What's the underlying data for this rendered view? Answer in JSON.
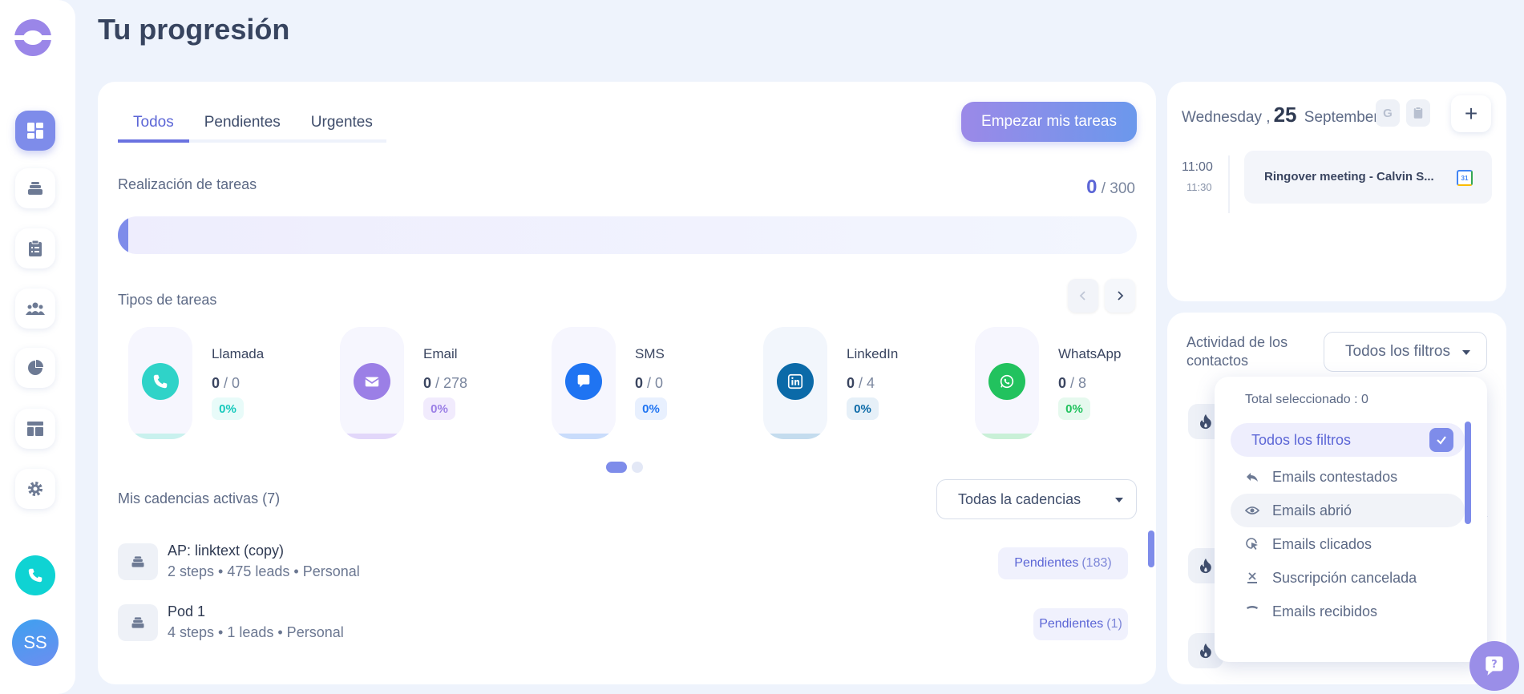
{
  "page": {
    "title": "Tu progresión"
  },
  "sidebar": {
    "avatar_initials": "SS",
    "items": [
      {
        "name": "dashboard",
        "icon": "dashboard-icon",
        "active": true
      },
      {
        "name": "cadences",
        "icon": "stack-icon",
        "active": false
      },
      {
        "name": "tasks",
        "icon": "clipboard-icon",
        "active": false
      },
      {
        "name": "contacts",
        "icon": "people-icon",
        "active": false
      },
      {
        "name": "reports",
        "icon": "pie-chart-icon",
        "active": false
      },
      {
        "name": "templates",
        "icon": "layout-icon",
        "active": false
      },
      {
        "name": "settings",
        "icon": "gear-icon",
        "active": false
      }
    ]
  },
  "tabs": [
    {
      "label": "Todos",
      "active": true
    },
    {
      "label": "Pendientes",
      "active": false
    },
    {
      "label": "Urgentes",
      "active": false
    }
  ],
  "start_button": "Empezar mis tareas",
  "completion": {
    "label": "Realización de tareas",
    "done": "0",
    "total": "/ 300",
    "fraction": 0.01
  },
  "task_types": {
    "label": "Tipos de tareas",
    "items": [
      {
        "name": "Llamada",
        "done": "0",
        "total": "/ 0",
        "pct": "0%",
        "color": "#2fd3c8",
        "bg": "#f6f6fe",
        "bottom": "#c9f1ee",
        "pct_bg": "#e8fbf9",
        "pct_color": "#15c9bc",
        "icon": "phone-icon"
      },
      {
        "name": "Email",
        "done": "0",
        "total": "/ 278",
        "pct": "0%",
        "color": "#9b7fe6",
        "bg": "#f6f6fe",
        "bottom": "#e2d7fa",
        "pct_bg": "#f1ebfd",
        "pct_color": "#9b7fe6",
        "icon": "envelope-icon"
      },
      {
        "name": "SMS",
        "done": "0",
        "total": "/ 0",
        "pct": "0%",
        "color": "#1f74f2",
        "bg": "#f6f6fe",
        "bottom": "#c9dcfb",
        "pct_bg": "#e8f0fe",
        "pct_color": "#1f74f2",
        "icon": "chat-bubble-icon"
      },
      {
        "name": "LinkedIn",
        "done": "0",
        "total": "/ 4",
        "pct": "0%",
        "color": "#0b6aa8",
        "bg": "#f2f6fc",
        "bottom": "#c4dcee",
        "pct_bg": "#e6f0f8",
        "pct_color": "#0b6aa8",
        "icon": "linkedin-icon"
      },
      {
        "name": "WhatsApp",
        "done": "0",
        "total": "/ 8",
        "pct": "0%",
        "color": "#22c25e",
        "bg": "#f6f6fe",
        "bottom": "#c9f0d7",
        "pct_bg": "#e6f9ee",
        "pct_color": "#22c25e",
        "icon": "whatsapp-icon"
      }
    ]
  },
  "cadences": {
    "label": "Mis cadencias activas (7)",
    "select": "Todas la cadencias",
    "rows": [
      {
        "title": "AP: linktext (copy)",
        "sub": "2 steps • 475 leads • Personal",
        "badge": "Pendientes",
        "count": "(183)"
      },
      {
        "title": "Pod 1",
        "sub": "4 steps • 1 leads • Personal",
        "badge": "Pendientes",
        "count": "(1)"
      }
    ]
  },
  "calendar": {
    "weekday": "Wednesday ,",
    "day": "25",
    "month": "September",
    "mini_g": "G",
    "event": {
      "start": "11:00",
      "end": "11:30",
      "title": "Ringover meeting - Calvin S...",
      "gcal_label": "31"
    }
  },
  "activity": {
    "title": "Actividad de los contactos",
    "filter": "Todos los filtros"
  },
  "dropdown": {
    "total": "Total seleccionado : 0",
    "items": [
      {
        "label": "Todos los filtros",
        "state": "selected"
      },
      {
        "label": "Emails contestados",
        "icon": "reply-icon",
        "state": ""
      },
      {
        "label": "Emails abrió",
        "icon": "eye-icon",
        "state": "hover"
      },
      {
        "label": "Emails clicados",
        "icon": "cursor-click-icon",
        "state": ""
      },
      {
        "label": "Suscripción cancelada",
        "icon": "unsubscribe-icon",
        "state": ""
      },
      {
        "label": "Emails recibidos",
        "icon": "inbox-icon",
        "state": ""
      }
    ]
  },
  "colors": {
    "accent": "#7e8cea",
    "teal": "#0fd3d3"
  }
}
